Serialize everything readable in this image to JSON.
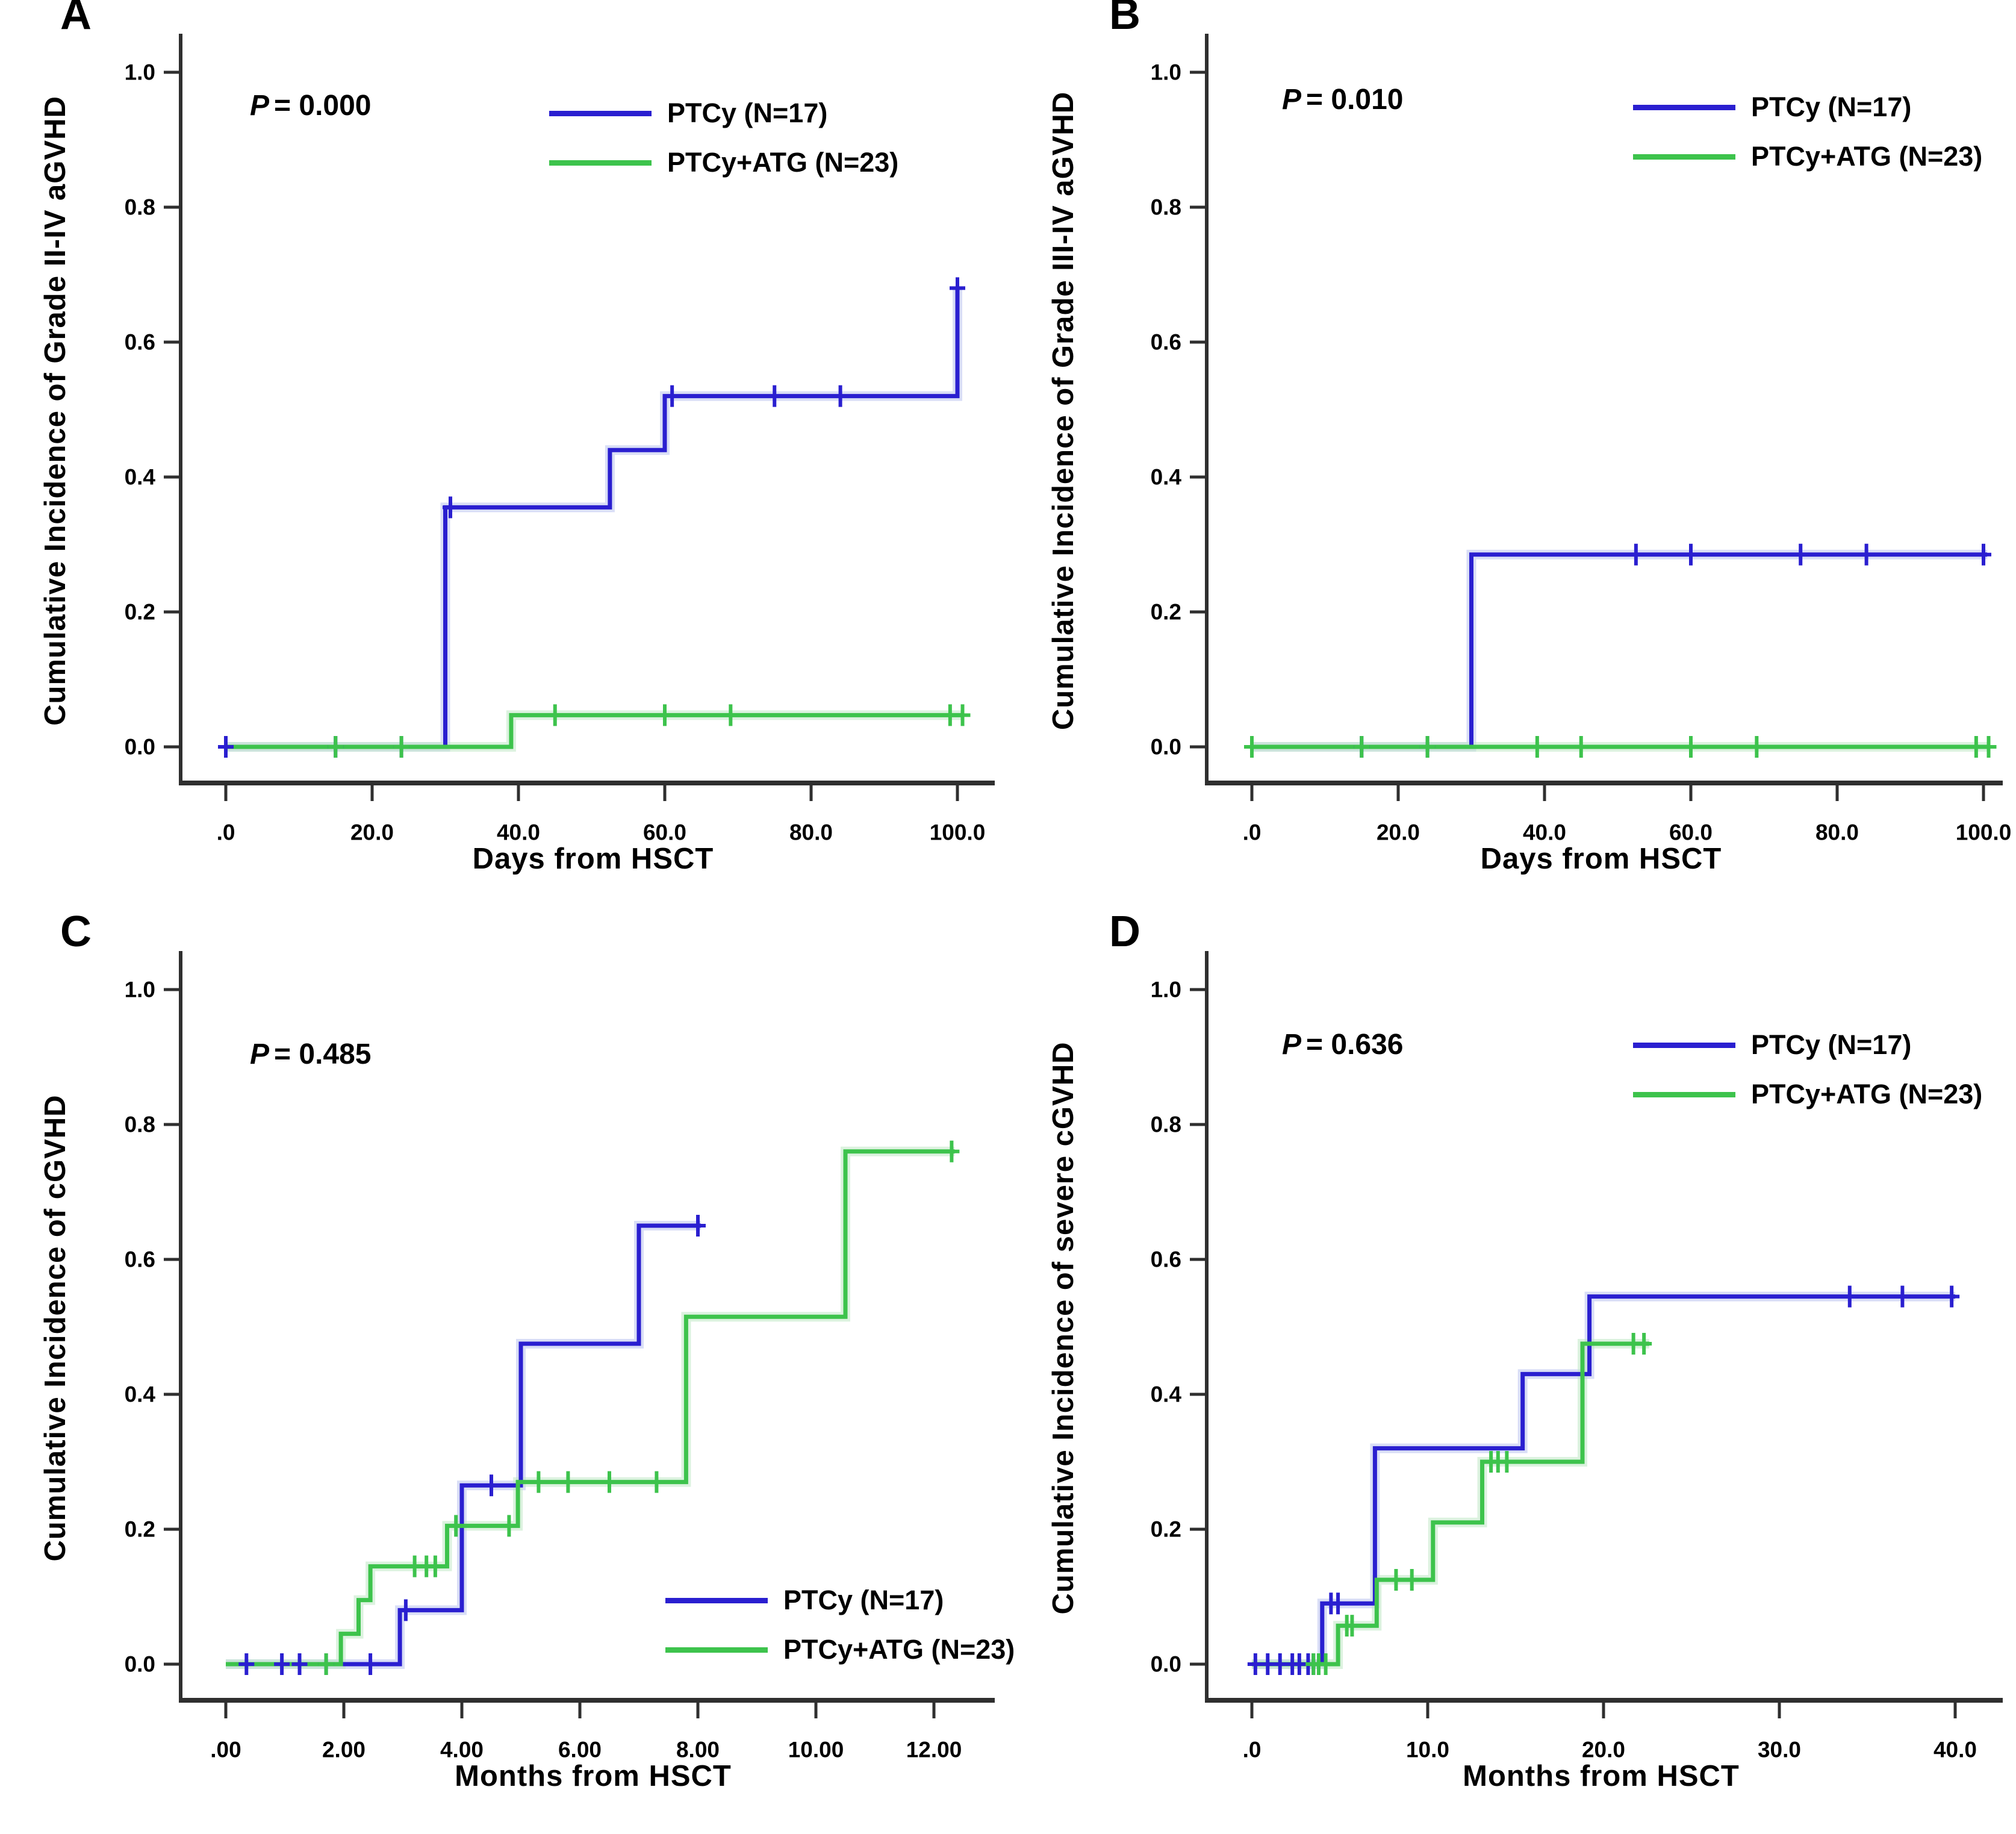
{
  "chart_data": [
    {
      "panel": "A",
      "type": "line",
      "step": true,
      "p_symbol": "P",
      "p_rest": "= 0.000",
      "xlabel": "Days from HSCT",
      "ylabel": "Cumulative Incidence of Grade II-IV aGVHD",
      "xlim": [
        0,
        100.5
      ],
      "ylim": [
        0,
        1.0
      ],
      "grid": false,
      "legend_position": "top-center-right",
      "xticks": [
        {
          "label": ".0",
          "value": 0
        },
        {
          "label": "20.0",
          "value": 20
        },
        {
          "label": "40.0",
          "value": 40
        },
        {
          "label": "60.0",
          "value": 60
        },
        {
          "label": "80.0",
          "value": 80
        },
        {
          "label": "100.0",
          "value": 100
        }
      ],
      "yticks": [
        {
          "label": "0.0",
          "value": 0
        },
        {
          "label": "0.2",
          "value": 0.2
        },
        {
          "label": "0.4",
          "value": 0.4
        },
        {
          "label": "0.6",
          "value": 0.6
        },
        {
          "label": "0.8",
          "value": 0.8
        },
        {
          "label": "1.0",
          "value": 1.0
        }
      ],
      "series": [
        {
          "key": "ptcy",
          "name": "PTCy (N=17)",
          "color": "#2a1fd0",
          "halo": "#b9c2ef",
          "steps": [
            [
              0,
              0
            ],
            [
              30,
              0
            ],
            [
              30,
              0.355
            ],
            [
              52.5,
              0.355
            ],
            [
              52.5,
              0.44
            ],
            [
              60,
              0.44
            ],
            [
              60,
              0.52
            ],
            [
              100,
              0.52
            ],
            [
              100,
              0.68
            ]
          ],
          "censors": [
            [
              0,
              0
            ],
            [
              15,
              0
            ],
            [
              24,
              0
            ],
            [
              30.7,
              0.355
            ],
            [
              61,
              0.52
            ],
            [
              75,
              0.52
            ],
            [
              84,
              0.52
            ],
            [
              100,
              0.68
            ]
          ]
        },
        {
          "key": "ptcy_atg",
          "name": "PTCy+ATG (N=23)",
          "color": "#3dc34c",
          "halo": "#bfe8c4",
          "steps": [
            [
              0,
              0
            ],
            [
              39,
              0
            ],
            [
              39,
              0.047
            ],
            [
              100.5,
              0.047
            ]
          ],
          "censors": [
            [
              15,
              0
            ],
            [
              24,
              0
            ],
            [
              45,
              0.047
            ],
            [
              60,
              0.047
            ],
            [
              69,
              0.047
            ],
            [
              99,
              0.047
            ],
            [
              100.7,
              0.047
            ]
          ]
        }
      ]
    },
    {
      "panel": "B",
      "type": "line",
      "step": true,
      "p_symbol": "P",
      "p_rest": "= 0.010",
      "xlabel": "Days from HSCT",
      "ylabel": "Cumulative Incidence of Grade III-IV aGVHD",
      "xlim": [
        0,
        100.5
      ],
      "ylim": [
        0,
        1.0
      ],
      "grid": false,
      "legend_position": "top-right",
      "xticks": [
        {
          "label": ".0",
          "value": 0
        },
        {
          "label": "20.0",
          "value": 20
        },
        {
          "label": "40.0",
          "value": 40
        },
        {
          "label": "60.0",
          "value": 60
        },
        {
          "label": "80.0",
          "value": 80
        },
        {
          "label": "100.0",
          "value": 100
        }
      ],
      "yticks": [
        {
          "label": "0.0",
          "value": 0
        },
        {
          "label": "0.2",
          "value": 0.2
        },
        {
          "label": "0.4",
          "value": 0.4
        },
        {
          "label": "0.6",
          "value": 0.6
        },
        {
          "label": "0.8",
          "value": 0.8
        },
        {
          "label": "1.0",
          "value": 1.0
        }
      ],
      "series": [
        {
          "key": "ptcy",
          "name": "PTCy (N=17)",
          "color": "#2a1fd0",
          "halo": "#b9c2ef",
          "steps": [
            [
              0,
              0
            ],
            [
              30,
              0
            ],
            [
              30,
              0.285
            ],
            [
              100.5,
              0.285
            ]
          ],
          "censors": [
            [
              0,
              0
            ],
            [
              15,
              0
            ],
            [
              24,
              0
            ],
            [
              52.5,
              0.285
            ],
            [
              60,
              0.285
            ],
            [
              75,
              0.285
            ],
            [
              84,
              0.285
            ],
            [
              100,
              0.285
            ]
          ]
        },
        {
          "key": "ptcy_atg",
          "name": "PTCy+ATG (N=23)",
          "color": "#3dc34c",
          "halo": "#bfe8c4",
          "steps": [
            [
              0,
              0
            ],
            [
              100.5,
              0
            ]
          ],
          "censors": [
            [
              0,
              0
            ],
            [
              15,
              0
            ],
            [
              24,
              0
            ],
            [
              39,
              0
            ],
            [
              45,
              0
            ],
            [
              60,
              0
            ],
            [
              69,
              0
            ],
            [
              99,
              0
            ],
            [
              100.7,
              0
            ]
          ]
        }
      ]
    },
    {
      "panel": "C",
      "type": "line",
      "step": true,
      "p_symbol": "P",
      "p_rest": "= 0.485",
      "xlabel": "Months from HSCT",
      "ylabel": "Cumulative Incidence of cGVHD",
      "xlim": [
        0,
        12.4
      ],
      "ylim": [
        0,
        1.0
      ],
      "grid": false,
      "legend_position": "bottom-right",
      "xticks": [
        {
          "label": ".00",
          "value": 0
        },
        {
          "label": "2.00",
          "value": 2
        },
        {
          "label": "4.00",
          "value": 4
        },
        {
          "label": "6.00",
          "value": 6
        },
        {
          "label": "8.00",
          "value": 8
        },
        {
          "label": "10.00",
          "value": 10
        },
        {
          "label": "12.00",
          "value": 12
        }
      ],
      "yticks": [
        {
          "label": "0.0",
          "value": 0
        },
        {
          "label": "0.2",
          "value": 0.2
        },
        {
          "label": "0.4",
          "value": 0.4
        },
        {
          "label": "0.6",
          "value": 0.6
        },
        {
          "label": "0.8",
          "value": 0.8
        },
        {
          "label": "1.0",
          "value": 1.0
        }
      ],
      "series": [
        {
          "key": "ptcy",
          "name": "PTCy (N=17)",
          "color": "#2a1fd0",
          "halo": "#b9c2ef",
          "steps": [
            [
              0,
              0
            ],
            [
              2.95,
              0
            ],
            [
              2.95,
              0.08
            ],
            [
              4,
              0.08
            ],
            [
              4,
              0.265
            ],
            [
              5,
              0.265
            ],
            [
              5,
              0.475
            ],
            [
              7,
              0.475
            ],
            [
              7,
              0.65
            ],
            [
              8.05,
              0.65
            ]
          ],
          "censors": [
            [
              0.35,
              0
            ],
            [
              0.95,
              0
            ],
            [
              1.25,
              0
            ],
            [
              1.7,
              0
            ],
            [
              2.45,
              0
            ],
            [
              3.05,
              0.08
            ],
            [
              4.5,
              0.265
            ],
            [
              8,
              0.65
            ]
          ]
        },
        {
          "key": "ptcy_atg",
          "name": "PTCy+ATG (N=23)",
          "color": "#3dc34c",
          "halo": "#bfe8c4",
          "steps": [
            [
              0,
              0
            ],
            [
              1.95,
              0
            ],
            [
              1.95,
              0.045
            ],
            [
              2.25,
              0.045
            ],
            [
              2.25,
              0.095
            ],
            [
              2.45,
              0.095
            ],
            [
              2.45,
              0.145
            ],
            [
              3.75,
              0.145
            ],
            [
              3.75,
              0.205
            ],
            [
              4.95,
              0.205
            ],
            [
              4.95,
              0.27
            ],
            [
              7.8,
              0.27
            ],
            [
              7.8,
              0.515
            ],
            [
              10.5,
              0.515
            ],
            [
              10.5,
              0.76
            ],
            [
              12.35,
              0.76
            ]
          ],
          "censors": [
            [
              1.7,
              0
            ],
            [
              3.2,
              0.145
            ],
            [
              3.4,
              0.145
            ],
            [
              3.55,
              0.145
            ],
            [
              3.9,
              0.205
            ],
            [
              4.8,
              0.205
            ],
            [
              5.3,
              0.27
            ],
            [
              5.8,
              0.27
            ],
            [
              6.5,
              0.27
            ],
            [
              7.3,
              0.27
            ],
            [
              12.3,
              0.76
            ]
          ]
        }
      ]
    },
    {
      "panel": "D",
      "type": "line",
      "step": true,
      "p_symbol": "P",
      "p_rest": "= 0.636",
      "xlabel": "Months from HSCT",
      "ylabel": "Cumulative Incidence of severe cGVHD",
      "xlim": [
        0,
        40.3
      ],
      "ylim": [
        0,
        1.0
      ],
      "grid": false,
      "legend_position": "top-right",
      "xticks": [
        {
          "label": ".0",
          "value": 0
        },
        {
          "label": "10.0",
          "value": 10
        },
        {
          "label": "20.0",
          "value": 20
        },
        {
          "label": "30.0",
          "value": 30
        },
        {
          "label": "40.0",
          "value": 40
        }
      ],
      "yticks": [
        {
          "label": "0.0",
          "value": 0
        },
        {
          "label": "0.2",
          "value": 0.2
        },
        {
          "label": "0.4",
          "value": 0.4
        },
        {
          "label": "0.6",
          "value": 0.6
        },
        {
          "label": "0.8",
          "value": 0.8
        },
        {
          "label": "1.0",
          "value": 1.0
        }
      ],
      "series": [
        {
          "key": "ptcy",
          "name": "PTCy (N=17)",
          "color": "#2a1fd0",
          "halo": "#b9c2ef",
          "steps": [
            [
              0,
              0
            ],
            [
              4,
              0
            ],
            [
              4,
              0.09
            ],
            [
              7,
              0.09
            ],
            [
              7,
              0.32
            ],
            [
              15.4,
              0.32
            ],
            [
              15.4,
              0.43
            ],
            [
              19.2,
              0.43
            ],
            [
              19.2,
              0.545
            ],
            [
              40,
              0.545
            ]
          ],
          "censors": [
            [
              0.2,
              0
            ],
            [
              0.9,
              0
            ],
            [
              1.6,
              0
            ],
            [
              2.3,
              0
            ],
            [
              2.7,
              0
            ],
            [
              3.2,
              0
            ],
            [
              3.5,
              0
            ],
            [
              4.5,
              0.09
            ],
            [
              4.9,
              0.09
            ],
            [
              34,
              0.545
            ],
            [
              37,
              0.545
            ],
            [
              39.8,
              0.545
            ]
          ]
        },
        {
          "key": "ptcy_atg",
          "name": "PTCy+ATG (N=23)",
          "color": "#3dc34c",
          "halo": "#bfe8c4",
          "steps": [
            [
              0,
              0
            ],
            [
              4.9,
              0
            ],
            [
              4.9,
              0.057
            ],
            [
              7.1,
              0.057
            ],
            [
              7.1,
              0.125
            ],
            [
              10.3,
              0.125
            ],
            [
              10.3,
              0.21
            ],
            [
              13.1,
              0.21
            ],
            [
              13.1,
              0.3
            ],
            [
              18.8,
              0.3
            ],
            [
              18.8,
              0.475
            ],
            [
              22.6,
              0.475
            ]
          ],
          "censors": [
            [
              3.5,
              0
            ],
            [
              3.8,
              0
            ],
            [
              4.2,
              0
            ],
            [
              5.4,
              0.057
            ],
            [
              5.7,
              0.057
            ],
            [
              8.2,
              0.125
            ],
            [
              9.1,
              0.125
            ],
            [
              13.6,
              0.3
            ],
            [
              14,
              0.3
            ],
            [
              14.5,
              0.3
            ],
            [
              21.7,
              0.475
            ],
            [
              22.3,
              0.475
            ]
          ]
        }
      ]
    }
  ]
}
